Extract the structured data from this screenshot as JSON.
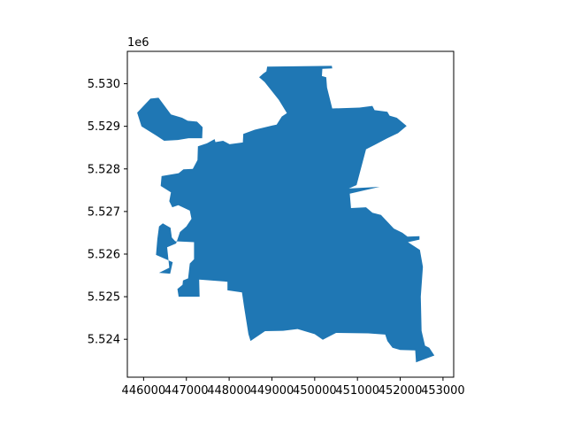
{
  "chart_data": {
    "type": "map",
    "title": "",
    "xlabel": "",
    "ylabel": "",
    "y_offset_label": "1e6",
    "xlim": [
      445620,
      453250
    ],
    "ylim": [
      5523110,
      5530760
    ],
    "fill_color": "#1f77b4",
    "x_ticks": [
      {
        "value": 446000,
        "label": "446000"
      },
      {
        "value": 447000,
        "label": "447000"
      },
      {
        "value": 448000,
        "label": "448000"
      },
      {
        "value": 449000,
        "label": "449000"
      },
      {
        "value": 450000,
        "label": "450000"
      },
      {
        "value": 451000,
        "label": "451000"
      },
      {
        "value": 452000,
        "label": "452000"
      },
      {
        "value": 453000,
        "label": "453000"
      }
    ],
    "y_ticks": [
      {
        "value": 5524000,
        "label": "5.524"
      },
      {
        "value": 5525000,
        "label": "5.525"
      },
      {
        "value": 5526000,
        "label": "5.526"
      },
      {
        "value": 5527000,
        "label": "5.527"
      },
      {
        "value": 5528000,
        "label": "5.528"
      },
      {
        "value": 5529000,
        "label": "5.529"
      },
      {
        "value": 5530000,
        "label": "5.530"
      }
    ],
    "boundary": [
      [
        448890,
        5530400
      ],
      [
        450400,
        5530420
      ],
      [
        450410,
        5530360
      ],
      [
        450180,
        5530350
      ],
      [
        450170,
        5530180
      ],
      [
        450270,
        5530150
      ],
      [
        450290,
        5529910
      ],
      [
        450410,
        5529420
      ],
      [
        451050,
        5529440
      ],
      [
        451350,
        5529480
      ],
      [
        451400,
        5529380
      ],
      [
        451700,
        5529340
      ],
      [
        451750,
        5529250
      ],
      [
        451920,
        5529200
      ],
      [
        452150,
        5529010
      ],
      [
        451950,
        5528840
      ],
      [
        451700,
        5528720
      ],
      [
        451400,
        5528560
      ],
      [
        451200,
        5528460
      ],
      [
        450980,
        5527620
      ],
      [
        450800,
        5527540
      ],
      [
        451520,
        5527580
      ],
      [
        450820,
        5527420
      ],
      [
        450850,
        5527080
      ],
      [
        451200,
        5527100
      ],
      [
        451350,
        5526970
      ],
      [
        451550,
        5526920
      ],
      [
        451850,
        5526600
      ],
      [
        452050,
        5526500
      ],
      [
        452170,
        5526410
      ],
      [
        452450,
        5526420
      ],
      [
        452450,
        5526340
      ],
      [
        452180,
        5526280
      ],
      [
        452460,
        5526100
      ],
      [
        452530,
        5525700
      ],
      [
        452480,
        5525000
      ],
      [
        452500,
        5524200
      ],
      [
        452580,
        5523850
      ],
      [
        452680,
        5523800
      ],
      [
        452800,
        5523620
      ],
      [
        452370,
        5523460
      ],
      [
        452350,
        5523740
      ],
      [
        452000,
        5523750
      ],
      [
        451820,
        5523800
      ],
      [
        451700,
        5523960
      ],
      [
        451650,
        5524110
      ],
      [
        451250,
        5524140
      ],
      [
        450500,
        5524150
      ],
      [
        450190,
        5523990
      ],
      [
        450000,
        5524120
      ],
      [
        449600,
        5524240
      ],
      [
        449260,
        5524200
      ],
      [
        448840,
        5524190
      ],
      [
        448500,
        5523960
      ],
      [
        448450,
        5524120
      ],
      [
        448350,
        5524760
      ],
      [
        448300,
        5525100
      ],
      [
        447960,
        5525150
      ],
      [
        447960,
        5525350
      ],
      [
        447300,
        5525400
      ],
      [
        447310,
        5525000
      ],
      [
        446820,
        5525000
      ],
      [
        446790,
        5525180
      ],
      [
        446910,
        5525280
      ],
      [
        446920,
        5525380
      ],
      [
        447040,
        5525430
      ],
      [
        447080,
        5525780
      ],
      [
        447180,
        5525880
      ],
      [
        447180,
        5526280
      ],
      [
        446740,
        5526300
      ],
      [
        446660,
        5526390
      ],
      [
        446630,
        5526620
      ],
      [
        446450,
        5526720
      ],
      [
        446360,
        5526650
      ],
      [
        446320,
        5526350
      ],
      [
        446290,
        5525980
      ],
      [
        446680,
        5525810
      ],
      [
        446620,
        5525540
      ],
      [
        446360,
        5525560
      ],
      [
        446600,
        5525680
      ],
      [
        446550,
        5526160
      ],
      [
        446760,
        5526250
      ],
      [
        446850,
        5526520
      ],
      [
        447000,
        5526650
      ],
      [
        447120,
        5526830
      ],
      [
        447080,
        5527020
      ],
      [
        446810,
        5527150
      ],
      [
        446670,
        5527100
      ],
      [
        446600,
        5527240
      ],
      [
        446640,
        5527450
      ],
      [
        446400,
        5527600
      ],
      [
        446420,
        5527830
      ],
      [
        446820,
        5527900
      ],
      [
        446930,
        5527990
      ],
      [
        447150,
        5528000
      ],
      [
        447260,
        5528210
      ],
      [
        447270,
        5528530
      ],
      [
        447480,
        5528600
      ],
      [
        447660,
        5528700
      ],
      [
        447680,
        5528630
      ],
      [
        447860,
        5528660
      ],
      [
        448010,
        5528580
      ],
      [
        448320,
        5528620
      ],
      [
        448330,
        5528820
      ],
      [
        448600,
        5528920
      ],
      [
        449010,
        5529020
      ],
      [
        449110,
        5529040
      ],
      [
        449230,
        5529230
      ],
      [
        449350,
        5529310
      ],
      [
        449160,
        5529620
      ],
      [
        448830,
        5530040
      ],
      [
        448700,
        5530150
      ],
      [
        448800,
        5530240
      ],
      [
        448870,
        5530290
      ],
      [
        448890,
        5530400
      ]
    ],
    "west_lobe": [
      [
        445850,
        5529320
      ],
      [
        446160,
        5529650
      ],
      [
        446350,
        5529670
      ],
      [
        446640,
        5529280
      ],
      [
        446900,
        5529200
      ],
      [
        447030,
        5529130
      ],
      [
        447250,
        5529110
      ],
      [
        447380,
        5528980
      ],
      [
        447370,
        5528720
      ],
      [
        447050,
        5528720
      ],
      [
        446800,
        5528680
      ],
      [
        446480,
        5528660
      ],
      [
        446300,
        5528780
      ],
      [
        445950,
        5529000
      ],
      [
        445850,
        5529320
      ]
    ]
  }
}
